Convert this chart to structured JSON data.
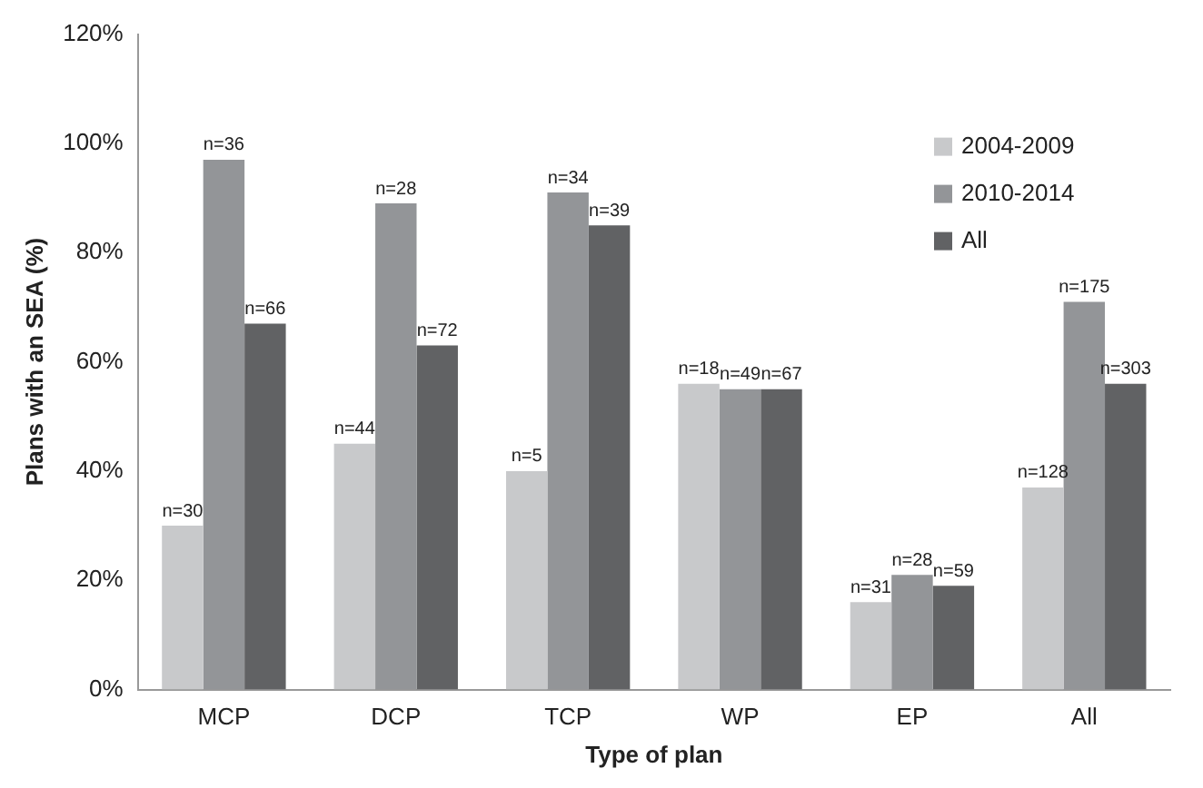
{
  "chart_data": {
    "type": "bar",
    "xlabel": "Type of plan",
    "ylabel": "Plans with an SEA (%)",
    "categories": [
      "MCP",
      "DCP",
      "TCP",
      "WP",
      "EP",
      "All"
    ],
    "series": [
      {
        "name": "2004-2009",
        "color": "#c8c9cb",
        "values": [
          30,
          45,
          40,
          56,
          16,
          37
        ]
      },
      {
        "name": "2010-2014",
        "color": "#939598",
        "values": [
          97,
          89,
          91,
          55,
          21,
          71
        ]
      },
      {
        "name": "All",
        "color": "#616264",
        "values": [
          67,
          63,
          85,
          55,
          19,
          56
        ]
      }
    ],
    "annotations": [
      "n=30",
      "n=36",
      "n=66",
      "n=44",
      "n=28",
      "n=72",
      "n=5",
      "n=34",
      "n=39",
      "n=18",
      "n=49",
      "n=67",
      "n=31",
      "n=28",
      "n=59",
      "n=128",
      "n=175",
      "n=303"
    ],
    "ylim": [
      0,
      120
    ],
    "yticks": [
      {
        "value": 0,
        "label": "0%"
      },
      {
        "value": 20,
        "label": "20%"
      },
      {
        "value": 40,
        "label": "40%"
      },
      {
        "value": 60,
        "label": "60%"
      },
      {
        "value": 80,
        "label": "80%"
      },
      {
        "value": 100,
        "label": "100%"
      },
      {
        "value": 120,
        "label": "120%"
      }
    ],
    "grid": false,
    "legend": "right"
  }
}
